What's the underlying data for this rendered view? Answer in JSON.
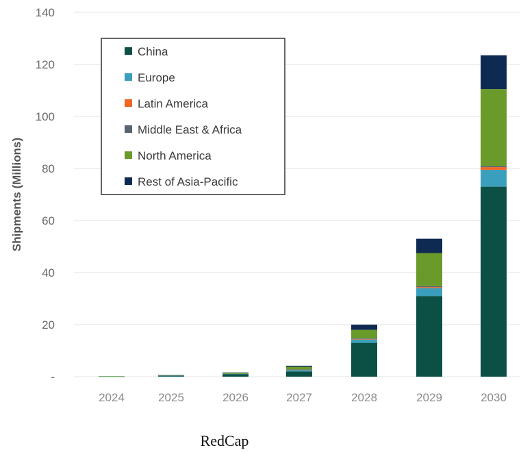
{
  "chart_data": {
    "type": "bar",
    "stacked": true,
    "caption": "RedCap",
    "ylabel": "Shipments (Millions)",
    "xlabel": "",
    "ylim": [
      0,
      140
    ],
    "yticks": [
      0,
      20,
      40,
      60,
      80,
      100,
      120,
      140
    ],
    "ytick_labels": [
      "-",
      "20",
      "40",
      "60",
      "80",
      "100",
      "120",
      "140"
    ],
    "grid": true,
    "legend_position": "top-left",
    "categories": [
      "2024",
      "2025",
      "2026",
      "2027",
      "2028",
      "2029",
      "2030"
    ],
    "series": [
      {
        "name": "China",
        "color": "#0b4f45",
        "values": [
          0.1,
          0.3,
          1.0,
          2.0,
          13.0,
          31.0,
          73.0
        ]
      },
      {
        "name": "Europe",
        "color": "#3a9fbc",
        "values": [
          0.05,
          0.05,
          0.1,
          0.6,
          1.3,
          3.0,
          6.5
        ]
      },
      {
        "name": "Latin America",
        "color": "#f26522",
        "values": [
          0.0,
          0.0,
          0.0,
          0.1,
          0.2,
          0.4,
          1.0
        ]
      },
      {
        "name": "Middle East & Africa",
        "color": "#5a6470",
        "values": [
          0.0,
          0.0,
          0.0,
          0.1,
          0.2,
          0.4,
          0.5
        ]
      },
      {
        "name": "North America",
        "color": "#6a9a2a",
        "values": [
          0.05,
          0.2,
          0.4,
          1.0,
          3.3,
          12.7,
          29.5
        ]
      },
      {
        "name": "Rest of Asia-Pacific",
        "color": "#0e2a52",
        "values": [
          0.0,
          0.05,
          0.1,
          0.4,
          2.0,
          5.5,
          13.0
        ]
      }
    ]
  }
}
